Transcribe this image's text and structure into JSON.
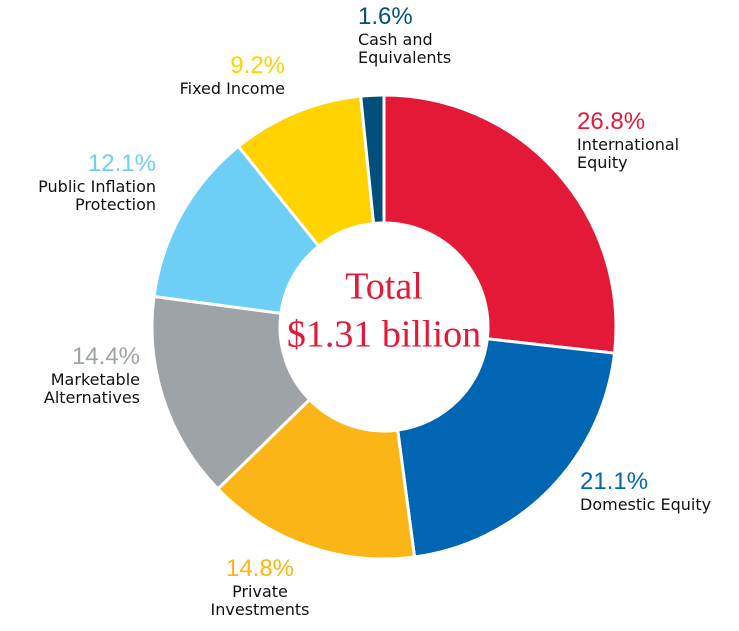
{
  "chart_data": {
    "type": "donut",
    "center_text": [
      "Total",
      "$1.31 billion"
    ],
    "categories": [
      "International Equity",
      "Domestic Equity",
      "Private Investments",
      "Marketable Alternatives",
      "Public Inflation Protection",
      "Fixed Income",
      "Cash and Equivalents"
    ],
    "values": [
      26.8,
      21.1,
      14.8,
      14.4,
      12.1,
      9.2,
      1.6
    ],
    "value_labels": [
      "26.8%",
      "21.1%",
      "14.8%",
      "14.4%",
      "12.1%",
      "9.2%",
      "1.6%"
    ],
    "colors": [
      "#e31937",
      "#0066b3",
      "#fbb516",
      "#9ea3a8",
      "#6dcff6",
      "#ffd200",
      "#004f7c"
    ]
  }
}
